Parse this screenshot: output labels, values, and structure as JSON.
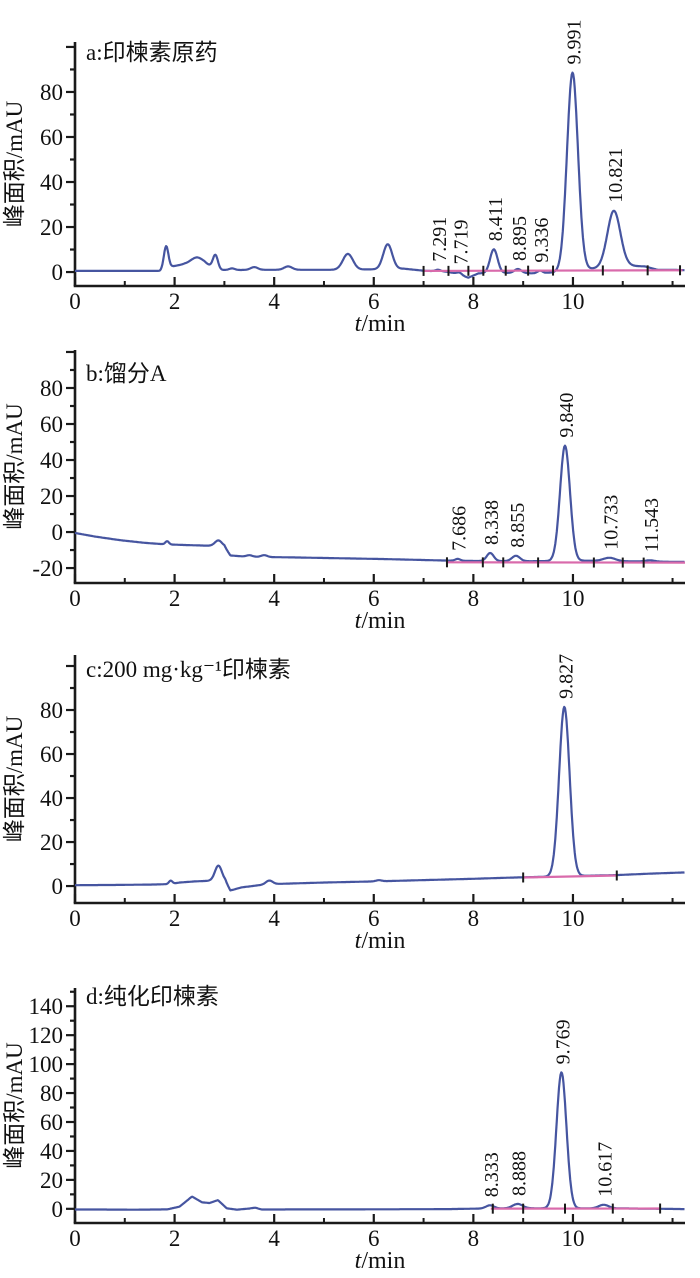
{
  "figure": {
    "description": "HPLC chromatograms of azadirachtin samples, four stacked panels",
    "x_axis_label_italic": "t",
    "x_axis_label_rest": "/min",
    "y_axis_label": "峰面积/mAU",
    "colors": {
      "trace": "#4655a0",
      "integration_baseline": "#d96aab",
      "axis": "#1a1a1a",
      "text": "#111111",
      "background": "#ffffff"
    }
  },
  "chart_data": [
    {
      "type": "line",
      "panel": "a",
      "title": "a:印楝素原药",
      "xlabel": "t/min",
      "ylabel": "峰面积/mAU",
      "xlim": [
        0,
        12.25
      ],
      "ylim": [
        -6.2,
        102.2
      ],
      "xticks": [
        0,
        2,
        4,
        6,
        8,
        10
      ],
      "xminor": [
        1,
        3,
        5,
        7,
        9,
        11,
        12
      ],
      "yticks": [
        0,
        20,
        40,
        60,
        80
      ],
      "yminor_step": 10,
      "labeled_peaks": [
        {
          "t": 7.291,
          "label": "7.291"
        },
        {
          "t": 7.719,
          "label": "7.719"
        },
        {
          "t": 8.411,
          "label": "8.411"
        },
        {
          "t": 8.895,
          "label": "8.895"
        },
        {
          "t": 9.336,
          "label": "9.336"
        },
        {
          "t": 9.991,
          "label": "9.991"
        },
        {
          "t": 10.821,
          "label": "10.821"
        }
      ],
      "trace_base": [
        [
          0,
          0.5
        ],
        [
          1.7,
          0.5
        ],
        [
          1.95,
          2.5
        ],
        [
          2.2,
          3.5
        ],
        [
          2.6,
          3.5
        ],
        [
          2.9,
          1
        ],
        [
          3.1,
          0.8
        ],
        [
          3.5,
          1
        ],
        [
          4.0,
          1
        ],
        [
          4.6,
          1
        ],
        [
          5.2,
          1
        ],
        [
          6.0,
          1.2
        ],
        [
          6.6,
          1.5
        ],
        [
          7.0,
          0.6
        ],
        [
          7.45,
          0.2
        ],
        [
          7.62,
          -0.5
        ],
        [
          7.9,
          -2.5
        ],
        [
          8.1,
          -0.6
        ],
        [
          8.4,
          -0.4
        ],
        [
          8.8,
          -0.4
        ],
        [
          9.3,
          -0.6
        ],
        [
          9.7,
          0
        ],
        [
          10.4,
          1.5
        ],
        [
          10.7,
          2
        ],
        [
          11.1,
          2.8
        ],
        [
          11.45,
          2.5
        ],
        [
          11.7,
          1
        ],
        [
          12.0,
          1
        ],
        [
          12.25,
          0.8
        ]
      ],
      "trace_gauss": [
        [
          1.83,
          10,
          0.045
        ],
        [
          2.45,
          3,
          0.12
        ],
        [
          2.82,
          6,
          0.05
        ],
        [
          3.15,
          0.8,
          0.06
        ],
        [
          3.6,
          1.2,
          0.07
        ],
        [
          4.28,
          1.5,
          0.08
        ],
        [
          5.48,
          7,
          0.1
        ],
        [
          6.28,
          11,
          0.09
        ],
        [
          7.291,
          0.7,
          0.05
        ],
        [
          7.719,
          1,
          0.05
        ],
        [
          8.411,
          10.5,
          0.075
        ],
        [
          8.895,
          1.8,
          0.07
        ],
        [
          9.336,
          1.2,
          0.05
        ],
        [
          9.991,
          88,
          0.11
        ],
        [
          10.821,
          25,
          0.13
        ]
      ],
      "integration_baseline": [
        [
          7.0,
          0.5
        ],
        [
          12.2,
          0.8
        ]
      ],
      "integration_ticks": [
        7.0,
        7.5,
        7.9,
        8.2,
        8.65,
        9.1,
        9.6,
        10.6,
        11.5,
        12.15
      ]
    },
    {
      "type": "line",
      "panel": "b",
      "title": "b:馏分A",
      "xlabel": "t/min",
      "ylabel": "峰面积/mAU",
      "xlim": [
        0,
        12.25
      ],
      "ylim": [
        -28.3,
        101.1
      ],
      "xticks": [
        0,
        2,
        4,
        6,
        8,
        10
      ],
      "xminor": [
        1,
        3,
        5,
        7,
        9,
        11,
        12
      ],
      "yticks": [
        -20,
        0,
        20,
        40,
        60,
        80
      ],
      "yminor_step": 10,
      "labeled_peaks": [
        {
          "t": 7.686,
          "label": "7.686"
        },
        {
          "t": 8.338,
          "label": "8.338"
        },
        {
          "t": 8.855,
          "label": "8.855"
        },
        {
          "t": 9.84,
          "label": "9.840"
        },
        {
          "t": 10.733,
          "label": "10.733"
        },
        {
          "t": 11.543,
          "label": "11.543"
        }
      ],
      "trace_base": [
        [
          0,
          -0.5
        ],
        [
          0.4,
          -2.5
        ],
        [
          0.9,
          -4.5
        ],
        [
          1.4,
          -6
        ],
        [
          1.8,
          -6.8
        ],
        [
          2.2,
          -7.2
        ],
        [
          2.7,
          -7.6
        ],
        [
          3.0,
          -8
        ],
        [
          3.12,
          -13
        ],
        [
          3.4,
          -13.6
        ],
        [
          3.9,
          -13.9
        ],
        [
          4.4,
          -14.1
        ],
        [
          5.0,
          -14.4
        ],
        [
          5.6,
          -14.7
        ],
        [
          6.2,
          -15
        ],
        [
          6.8,
          -15.4
        ],
        [
          7.4,
          -15.8
        ],
        [
          8.1,
          -16.1
        ],
        [
          9.0,
          -16.2
        ],
        [
          9.6,
          -16.1
        ],
        [
          10.3,
          -15.9
        ],
        [
          11.0,
          -16.2
        ],
        [
          11.6,
          -16.4
        ],
        [
          12.25,
          -16.6
        ]
      ],
      "trace_gauss": [
        [
          1.85,
          1.8,
          0.035
        ],
        [
          2.88,
          3.2,
          0.07
        ],
        [
          3.5,
          0.8,
          0.06
        ],
        [
          3.8,
          1,
          0.06
        ],
        [
          7.686,
          1,
          0.05
        ],
        [
          8.338,
          4.5,
          0.07
        ],
        [
          8.855,
          3,
          0.08
        ],
        [
          9.84,
          64,
          0.1
        ],
        [
          10.733,
          1.8,
          0.12
        ],
        [
          11.543,
          0.7,
          0.09
        ]
      ],
      "integration_baseline": [
        [
          7.45,
          -16.8
        ],
        [
          12.25,
          -17
        ]
      ],
      "integration_ticks": [
        7.47,
        8.19,
        8.6,
        9.3,
        10.42,
        11.0,
        11.42
      ]
    },
    {
      "type": "line",
      "panel": "c",
      "title": "c:200 mg·kg⁻¹印楝素",
      "xlabel": "t/min",
      "ylabel": "峰面积/mAU",
      "xlim": [
        0,
        12.25
      ],
      "ylim": [
        -7.7,
        105
      ],
      "xticks": [
        0,
        2,
        4,
        6,
        8,
        10
      ],
      "xminor": [
        1,
        3,
        5,
        7,
        9,
        11,
        12
      ],
      "yticks": [
        0,
        20,
        40,
        60,
        80
      ],
      "yminor_step": 10,
      "labeled_peaks": [
        {
          "t": 9.827,
          "label": "9.827"
        }
      ],
      "trace_base": [
        [
          0,
          0.4
        ],
        [
          0.8,
          0.5
        ],
        [
          1.6,
          0.7
        ],
        [
          1.9,
          0.9
        ],
        [
          2.1,
          1.6
        ],
        [
          2.4,
          2.1
        ],
        [
          2.7,
          2.4
        ],
        [
          3.02,
          2.2
        ],
        [
          3.12,
          -2
        ],
        [
          3.35,
          -0.6
        ],
        [
          3.7,
          0.4
        ],
        [
          4.1,
          1
        ],
        [
          5.0,
          1.6
        ],
        [
          6.0,
          2.1
        ],
        [
          7.0,
          2.7
        ],
        [
          8.0,
          3.3
        ],
        [
          8.7,
          3.8
        ],
        [
          9.4,
          4.2
        ],
        [
          10.1,
          4.6
        ],
        [
          10.9,
          5
        ],
        [
          11.5,
          5.6
        ],
        [
          12.0,
          6
        ],
        [
          12.25,
          6.2
        ]
      ],
      "trace_gauss": [
        [
          1.92,
          1.5,
          0.035
        ],
        [
          2.88,
          7,
          0.07
        ],
        [
          3.9,
          1.8,
          0.07
        ],
        [
          6.1,
          0.5,
          0.06
        ],
        [
          9.827,
          77,
          0.105
        ]
      ],
      "integration_baseline": [
        [
          9.0,
          3.9
        ],
        [
          10.88,
          4.8
        ]
      ],
      "integration_ticks": [
        9.0,
        10.88
      ]
    },
    {
      "type": "line",
      "panel": "d",
      "title": "d:纯化印楝素",
      "xlabel": "t/min",
      "ylabel": "峰面积/mAU",
      "xlim": [
        0,
        12.25
      ],
      "ylim": [
        -9.8,
        152.6
      ],
      "xticks": [
        0,
        2,
        4,
        6,
        8,
        10
      ],
      "xminor": [
        1,
        3,
        5,
        7,
        9,
        11,
        12
      ],
      "yticks": [
        0,
        20,
        40,
        60,
        80,
        100,
        120,
        140
      ],
      "yminor_step": 10,
      "labeled_peaks": [
        {
          "t": 8.333,
          "label": "8.333"
        },
        {
          "t": 8.888,
          "label": "8.888"
        },
        {
          "t": 9.769,
          "label": "9.769"
        },
        {
          "t": 10.617,
          "label": "10.617"
        }
      ],
      "trace_base": [
        [
          0,
          -0.5
        ],
        [
          0.6,
          -0.5
        ],
        [
          1.2,
          -0.6
        ],
        [
          1.85,
          -0.4
        ],
        [
          2.1,
          1.5
        ],
        [
          2.35,
          8.5
        ],
        [
          2.55,
          4.5
        ],
        [
          2.7,
          4
        ],
        [
          2.87,
          6
        ],
        [
          3.05,
          0.3
        ],
        [
          3.25,
          -0.6
        ],
        [
          3.5,
          0.2
        ],
        [
          3.62,
          0.8
        ],
        [
          3.75,
          -0.5
        ],
        [
          4.5,
          -0.4
        ],
        [
          5.5,
          -0.4
        ],
        [
          6.5,
          -0.3
        ],
        [
          7.5,
          -0.2
        ],
        [
          8.2,
          0.2
        ],
        [
          9.0,
          0.4
        ],
        [
          10.0,
          0.3
        ],
        [
          11.0,
          0.3
        ],
        [
          11.8,
          0
        ],
        [
          12.25,
          -0.2
        ]
      ],
      "trace_gauss": [
        [
          8.333,
          2.2,
          0.08
        ],
        [
          8.888,
          3,
          0.1
        ],
        [
          9.769,
          94,
          0.1
        ],
        [
          10.617,
          2.5,
          0.1
        ]
      ],
      "integration_baseline": [
        [
          8.35,
          0.1
        ],
        [
          11.75,
          0.2
        ]
      ],
      "integration_ticks": [
        8.39,
        9.0,
        9.84,
        10.8,
        11.75
      ]
    }
  ]
}
